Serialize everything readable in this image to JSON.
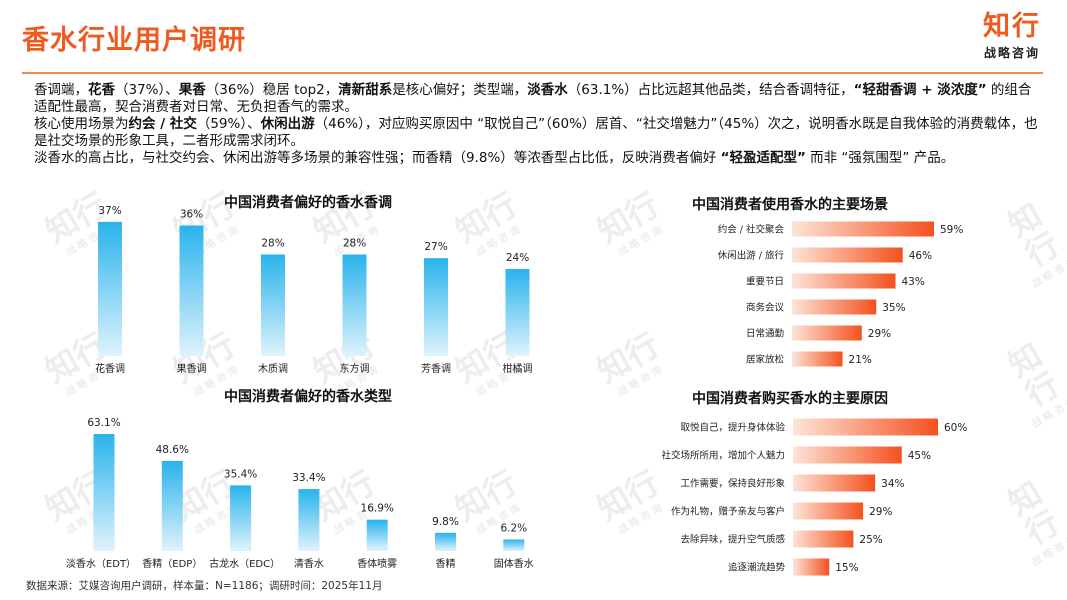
{
  "header": {
    "title": "香水行业用户调研",
    "logo_main": "知行",
    "logo_sub": "战略咨询"
  },
  "summary": {
    "p1": [
      {
        "t": "香调端，"
      },
      {
        "t": "花香",
        "b": true
      },
      {
        "t": "（37%）、"
      },
      {
        "t": "果香",
        "b": true
      },
      {
        "t": "（36%）稳居 top2，"
      },
      {
        "t": "清新甜系",
        "b": true
      },
      {
        "t": "是核心偏好；类型端，"
      },
      {
        "t": "淡香水",
        "b": true
      },
      {
        "t": "（63.1%）占比远超其他品类，结合香调特征，"
      },
      {
        "t": "“轻甜香调 + 淡浓度”",
        "b": true
      },
      {
        "t": " 的组合适配性最高，契合消费者对日常、无负担香气的需求。"
      }
    ],
    "p2": [
      {
        "t": "核心使用场景为"
      },
      {
        "t": "约会 / 社交",
        "b": true
      },
      {
        "t": "（59%）、"
      },
      {
        "t": "休闲出游",
        "b": true
      },
      {
        "t": "（46%），对应购买原因中 “取悦自己”（60%）居首、“社交增魅力”（45%）次之，说明香水既是自我体验的消费载体，也是社交场景的形象工具，二者形成需求闭环。"
      }
    ],
    "p3": [
      {
        "t": "淡香水的高占比，与社交约会、休闲出游等多场景的兼容性强；而香精（9.8%）等浓香型占比低，反映消费者偏好 "
      },
      {
        "t": "“轻盈适配型”",
        "b": true
      },
      {
        "t": " 而非 “强氛围型” 产品。"
      }
    ]
  },
  "watermark": {
    "main": "知行",
    "sub": "战略咨询"
  },
  "colors": {
    "accent": "#ef5a1e",
    "blue_top": "#29b3ec",
    "blue_bottom": "#dff3fc",
    "orange_dark": "#f4511e",
    "orange_light": "#fde4d8"
  },
  "chart_data": [
    {
      "type": "bar",
      "title": "中国消费者偏好的香水香调",
      "categories": [
        "花香调",
        "果香调",
        "木质调",
        "东方调",
        "芳香调",
        "柑橘调"
      ],
      "values": [
        37,
        36,
        28,
        28,
        27,
        24
      ],
      "labels": [
        "37%",
        "36%",
        "28%",
        "28%",
        "27%",
        "24%"
      ],
      "unit": "%",
      "orientation": "vertical"
    },
    {
      "type": "bar",
      "title": "中国消费者偏好的香水类型",
      "categories": [
        "淡香水（EDT）",
        "香精（EDP）",
        "古龙水（EDC）",
        "清香水",
        "香体喷雾",
        "香精",
        "固体香水"
      ],
      "values": [
        63.1,
        48.6,
        35.4,
        33.4,
        16.9,
        9.8,
        6.2
      ],
      "labels": [
        "63.1%",
        "48.6%",
        "35.4%",
        "33.4%",
        "16.9%",
        "9.8%",
        "6.2%"
      ],
      "unit": "%",
      "orientation": "vertical"
    },
    {
      "type": "bar",
      "title": "中国消费者使用香水的主要场景",
      "categories": [
        "约会 / 社交聚会",
        "休闲出游 / 旅行",
        "重要节日",
        "商务会议",
        "日常通勤",
        "居家放松"
      ],
      "values": [
        59,
        46,
        43,
        35,
        29,
        21
      ],
      "labels": [
        "59%",
        "46%",
        "43%",
        "35%",
        "29%",
        "21%"
      ],
      "unit": "%",
      "orientation": "horizontal"
    },
    {
      "type": "bar",
      "title": "中国消费者购买香水的主要原因",
      "categories": [
        "取悦自己，提升身体体验",
        "社交场所所用，增加个人魅力",
        "工作需要，保持良好形象",
        "作为礼物，赠予亲友与客户",
        "去除异味，提升空气质感",
        "追逐潮流趋势"
      ],
      "values": [
        60,
        45,
        34,
        29,
        25,
        15
      ],
      "labels": [
        "60%",
        "45%",
        "34%",
        "29%",
        "25%",
        "15%"
      ],
      "unit": "%",
      "orientation": "horizontal"
    }
  ],
  "footer": {
    "source": "数据来源：艾媒咨询用户调研，样本量：N=1186；调研时间：2025年11月"
  }
}
